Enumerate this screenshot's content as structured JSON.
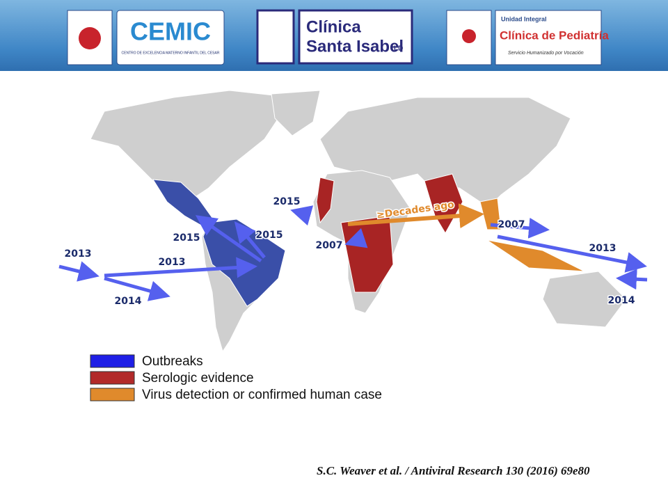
{
  "header": {
    "logos": [
      {
        "name": "CEMIC",
        "subtitle": "CENTRO DE EXCELENCIA MATERNO INFANTIL DEL CESAR"
      },
      {
        "line1": "Clínica",
        "line2": "Santa Isabel",
        "suffix": "LD"
      },
      {
        "line1": "Unidad Integral",
        "line2": "Clínica de Pediatría",
        "tagline": "Servicio Humanizado por Vocación"
      }
    ]
  },
  "map": {
    "labels": [
      "2015",
      "2015",
      "2015",
      "2007",
      "2013",
      "2013",
      "2014",
      "2007",
      "2013",
      "2014",
      "≥Decades ago"
    ],
    "legend": [
      {
        "label": "Outbreaks",
        "color": "#1f1fe6"
      },
      {
        "label": "Serologic evidence",
        "color": "#b22a2a"
      },
      {
        "label": "Virus detection or confirmed human case",
        "color": "#e08a2c"
      }
    ]
  },
  "citation": "S.C. Weaver et al. / Antiviral Research 130 (2016) 69e80"
}
